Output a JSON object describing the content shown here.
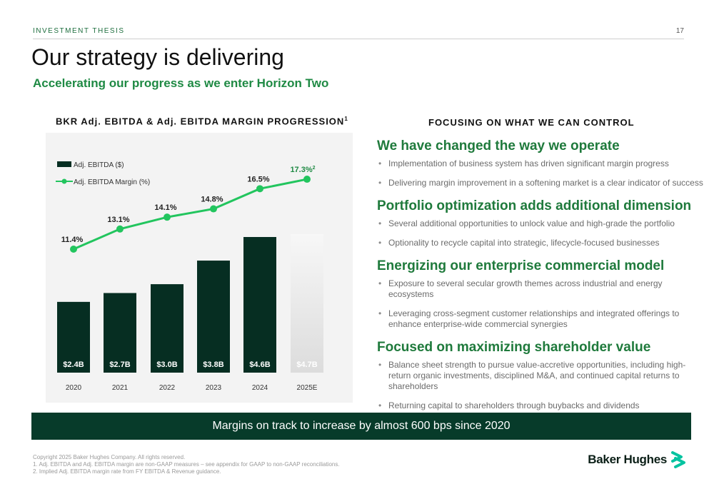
{
  "header": {
    "section_label": "INVESTMENT THESIS",
    "page_number": "17",
    "title": "Our strategy is delivering",
    "subtitle": "Accelerating our progress as we enter Horizon Two"
  },
  "chart_heading": {
    "text": "BKR Adj. EBITDA & Adj. EBITDA MARGIN PROGRESSION",
    "footnote_mark": "1"
  },
  "chart_data": {
    "type": "bar",
    "categories": [
      "2020",
      "2021",
      "2022",
      "2023",
      "2024",
      "2025E"
    ],
    "series": [
      {
        "name": "Adj. EBITDA ($)",
        "kind": "bar",
        "values": [
          2.4,
          2.7,
          3.0,
          3.8,
          4.6,
          4.7
        ],
        "labels": [
          "$2.4B",
          "$2.7B",
          "$3.0B",
          "$3.8B",
          "$4.6B",
          "$4.7B"
        ],
        "color": "#062e22",
        "estimate_color": "#e6e6e6"
      },
      {
        "name": "Adj. EBITDA Margin (%)",
        "kind": "line",
        "values": [
          11.4,
          13.1,
          14.1,
          14.8,
          16.5,
          17.3
        ],
        "labels": [
          "11.4%",
          "13.1%",
          "14.1%",
          "14.8%",
          "16.5%",
          "17.3%"
        ],
        "last_label_footnote": "2",
        "color": "#22c55e",
        "last_label_color": "#1f8a44"
      }
    ],
    "legend_position": "top-left",
    "grid": false
  },
  "right_column": {
    "heading": "FOCUSING ON WHAT WE CAN CONTROL",
    "pillars": [
      {
        "title": "We have changed the way we operate",
        "bullets": [
          "Implementation of business system has driven significant margin progress",
          "Delivering margin improvement in a softening market is a clear indicator of success"
        ]
      },
      {
        "title": "Portfolio optimization adds additional dimension",
        "bullets": [
          "Several additional opportunities to unlock value and high-grade the portfolio",
          "Optionality to recycle capital into strategic, lifecycle-focused businesses"
        ]
      },
      {
        "title": "Energizing our enterprise commercial model",
        "bullets": [
          "Exposure to several secular growth themes across industrial and energy ecosystems",
          "Leveraging cross-segment customer relationships and integrated offerings to enhance enterprise-wide commercial synergies"
        ]
      },
      {
        "title": "Focused on maximizing shareholder value",
        "bullets": [
          "Balance sheet strength to pursue value-accretive opportunities, including high-return organic investments, disciplined M&A, and continued capital returns to shareholders",
          "Returning capital to shareholders through buybacks and dividends"
        ]
      }
    ]
  },
  "banner": {
    "text": "Margins on track to increase by almost 600 bps since 2020"
  },
  "footnotes": [
    "Copyright 2025 Baker Hughes Company. All rights reserved.",
    "1. Adj. EBITDA and Adj. EBITDA margin are non-GAAP measures – see appendix for GAAP to non-GAAP reconciliations.",
    "2. Implied Adj. EBITDA margin rate from FY EBITDA & Revenue guidance."
  ],
  "logo": {
    "text": "Baker Hughes",
    "icon": "baker-hughes-chevron-icon",
    "color": "#05c3a0"
  }
}
